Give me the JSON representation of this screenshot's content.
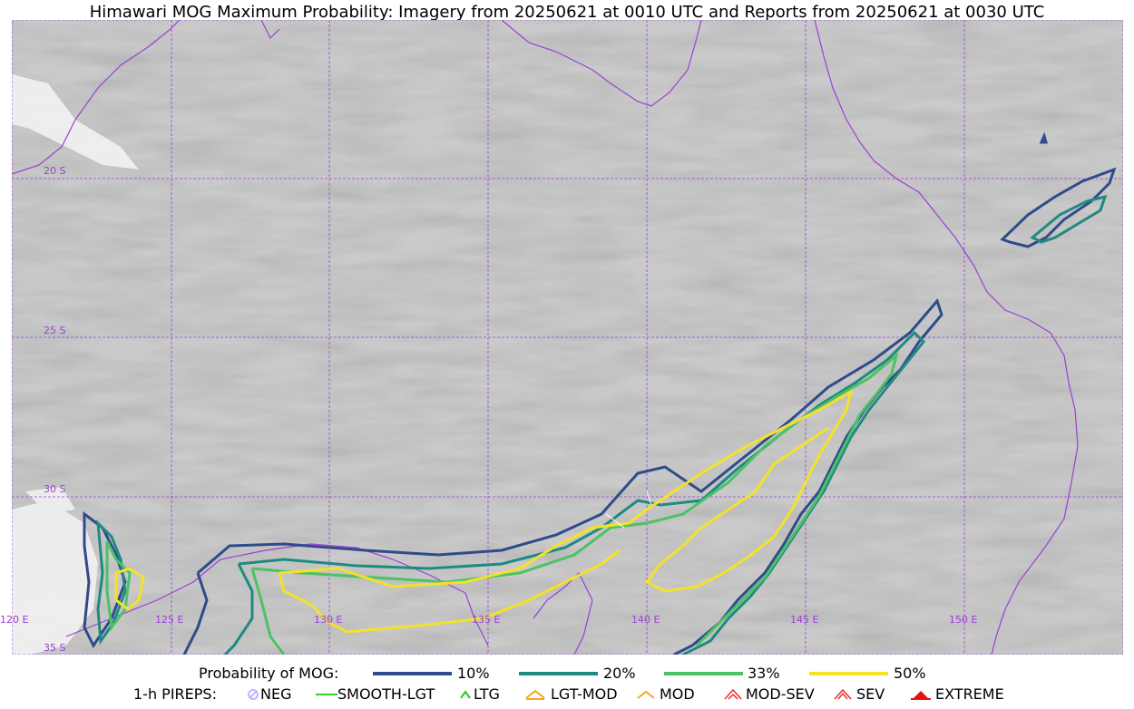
{
  "title": "Himawari MOG Maximum Probability: Imagery from 20250621 at 0010 UTC and Reports from 20250621 at 0030 UTC",
  "map": {
    "lat_labels": [
      "20 S",
      "25 S",
      "30 S",
      "35 S"
    ],
    "lon_labels": [
      "120 E",
      "125 E",
      "130 E",
      "135 E",
      "140 E",
      "145 E",
      "150 E"
    ],
    "contour_colors": {
      "p10": "#2f4b8a",
      "p20": "#1f8a80",
      "p33": "#4cc265",
      "p50": "#f4e12a"
    },
    "coastline_color": "#9b3fd6"
  },
  "legend": {
    "probability": {
      "title": "Probability of MOG:",
      "items": [
        {
          "label": "10%",
          "color": "#2f4b8a"
        },
        {
          "label": "20%",
          "color": "#1f8a80"
        },
        {
          "label": "33%",
          "color": "#4cc265"
        },
        {
          "label": "50%",
          "color": "#f4e12a"
        }
      ]
    },
    "pireps": {
      "title": "1-h PIREPS:",
      "items": [
        {
          "label": "NEG",
          "icon": "neg-icon",
          "color": "#b9b9ff"
        },
        {
          "label": "SMOOTH-LGT",
          "icon": "smooth-lgt-icon",
          "color": "#33cc33"
        },
        {
          "label": "LTG",
          "icon": "ltg-icon",
          "color": "#22cc22"
        },
        {
          "label": "LGT-MOD",
          "icon": "lgt-mod-icon",
          "color": "#f4a81c"
        },
        {
          "label": "MOD",
          "icon": "mod-icon",
          "color": "#f4a81c"
        },
        {
          "label": "MOD-SEV",
          "icon": "mod-sev-icon",
          "color": "#e83030"
        },
        {
          "label": "SEV",
          "icon": "sev-icon",
          "color": "#e83030"
        },
        {
          "label": "EXTREME",
          "icon": "extreme-icon",
          "color": "#e81010"
        }
      ]
    }
  }
}
